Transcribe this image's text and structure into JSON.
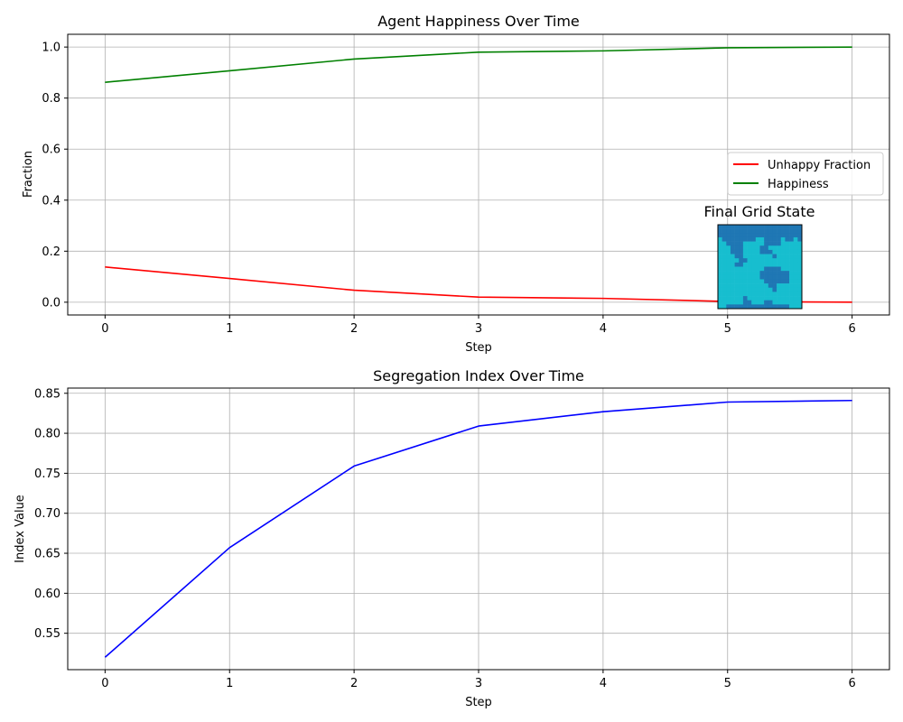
{
  "colors": {
    "unhappy": "#ff0000",
    "happiness": "#008000",
    "segregation": "#0000ff",
    "grid": "#b0b0b0",
    "cell_a": "#1f77b4",
    "cell_b": "#17becf"
  },
  "chart_data": [
    {
      "type": "line",
      "title": "Agent Happiness Over Time",
      "xlabel": "Step",
      "ylabel": "Fraction",
      "xlim": [
        -0.3,
        6.3
      ],
      "ylim": [
        -0.05,
        1.05
      ],
      "xticks": [
        "0",
        "1",
        "2",
        "3",
        "4",
        "5",
        "6"
      ],
      "yticks": [
        "0.0",
        "0.2",
        "0.4",
        "0.6",
        "0.8",
        "1.0"
      ],
      "grid": true,
      "legend": "center-right",
      "x": [
        0,
        1,
        2,
        3,
        4,
        5,
        6
      ],
      "series": [
        {
          "name": "Unhappy Fraction",
          "color": "#ff0000",
          "values": [
            0.138,
            0.093,
            0.047,
            0.02,
            0.015,
            0.003,
            0.0
          ]
        },
        {
          "name": "Happiness",
          "color": "#008000",
          "values": [
            0.862,
            0.907,
            0.953,
            0.98,
            0.985,
            0.997,
            1.0
          ]
        }
      ],
      "inset": {
        "title": "Final Grid State",
        "type": "heatmap",
        "colors": [
          "#1f77b4",
          "#17becf"
        ],
        "grid": [
          "11111111111111111111",
          "11111111111111111111",
          "11111111111111111111",
          "01111111100111101101",
          "00111100000111100000",
          "00011100001100000000",
          "00011100001110000000",
          "00001100000001000000",
          "00000110000000000000",
          "00001100000000000000",
          "00000000000111100000",
          "00000000001111111000",
          "00000000001111111000",
          "00000000000111111000",
          "00000000000011000000",
          "00000000000001000000",
          "00000000000000000000",
          "00000010000000000000",
          "00000011000110000000",
          "00111111111111111000"
        ]
      }
    },
    {
      "type": "line",
      "title": "Segregation Index Over Time",
      "xlabel": "Step",
      "ylabel": "Index Value",
      "xlim": [
        -0.3,
        6.3
      ],
      "ylim": [
        0.5045,
        0.8565
      ],
      "xticks": [
        "0",
        "1",
        "2",
        "3",
        "4",
        "5",
        "6"
      ],
      "yticks": [
        "0.55",
        "0.60",
        "0.65",
        "0.70",
        "0.75",
        "0.80",
        "0.85"
      ],
      "grid": true,
      "x": [
        0,
        1,
        2,
        3,
        4,
        5,
        6
      ],
      "series": [
        {
          "color": "#0000ff",
          "values": [
            0.52,
            0.657,
            0.759,
            0.809,
            0.827,
            0.839,
            0.841
          ]
        }
      ]
    }
  ]
}
